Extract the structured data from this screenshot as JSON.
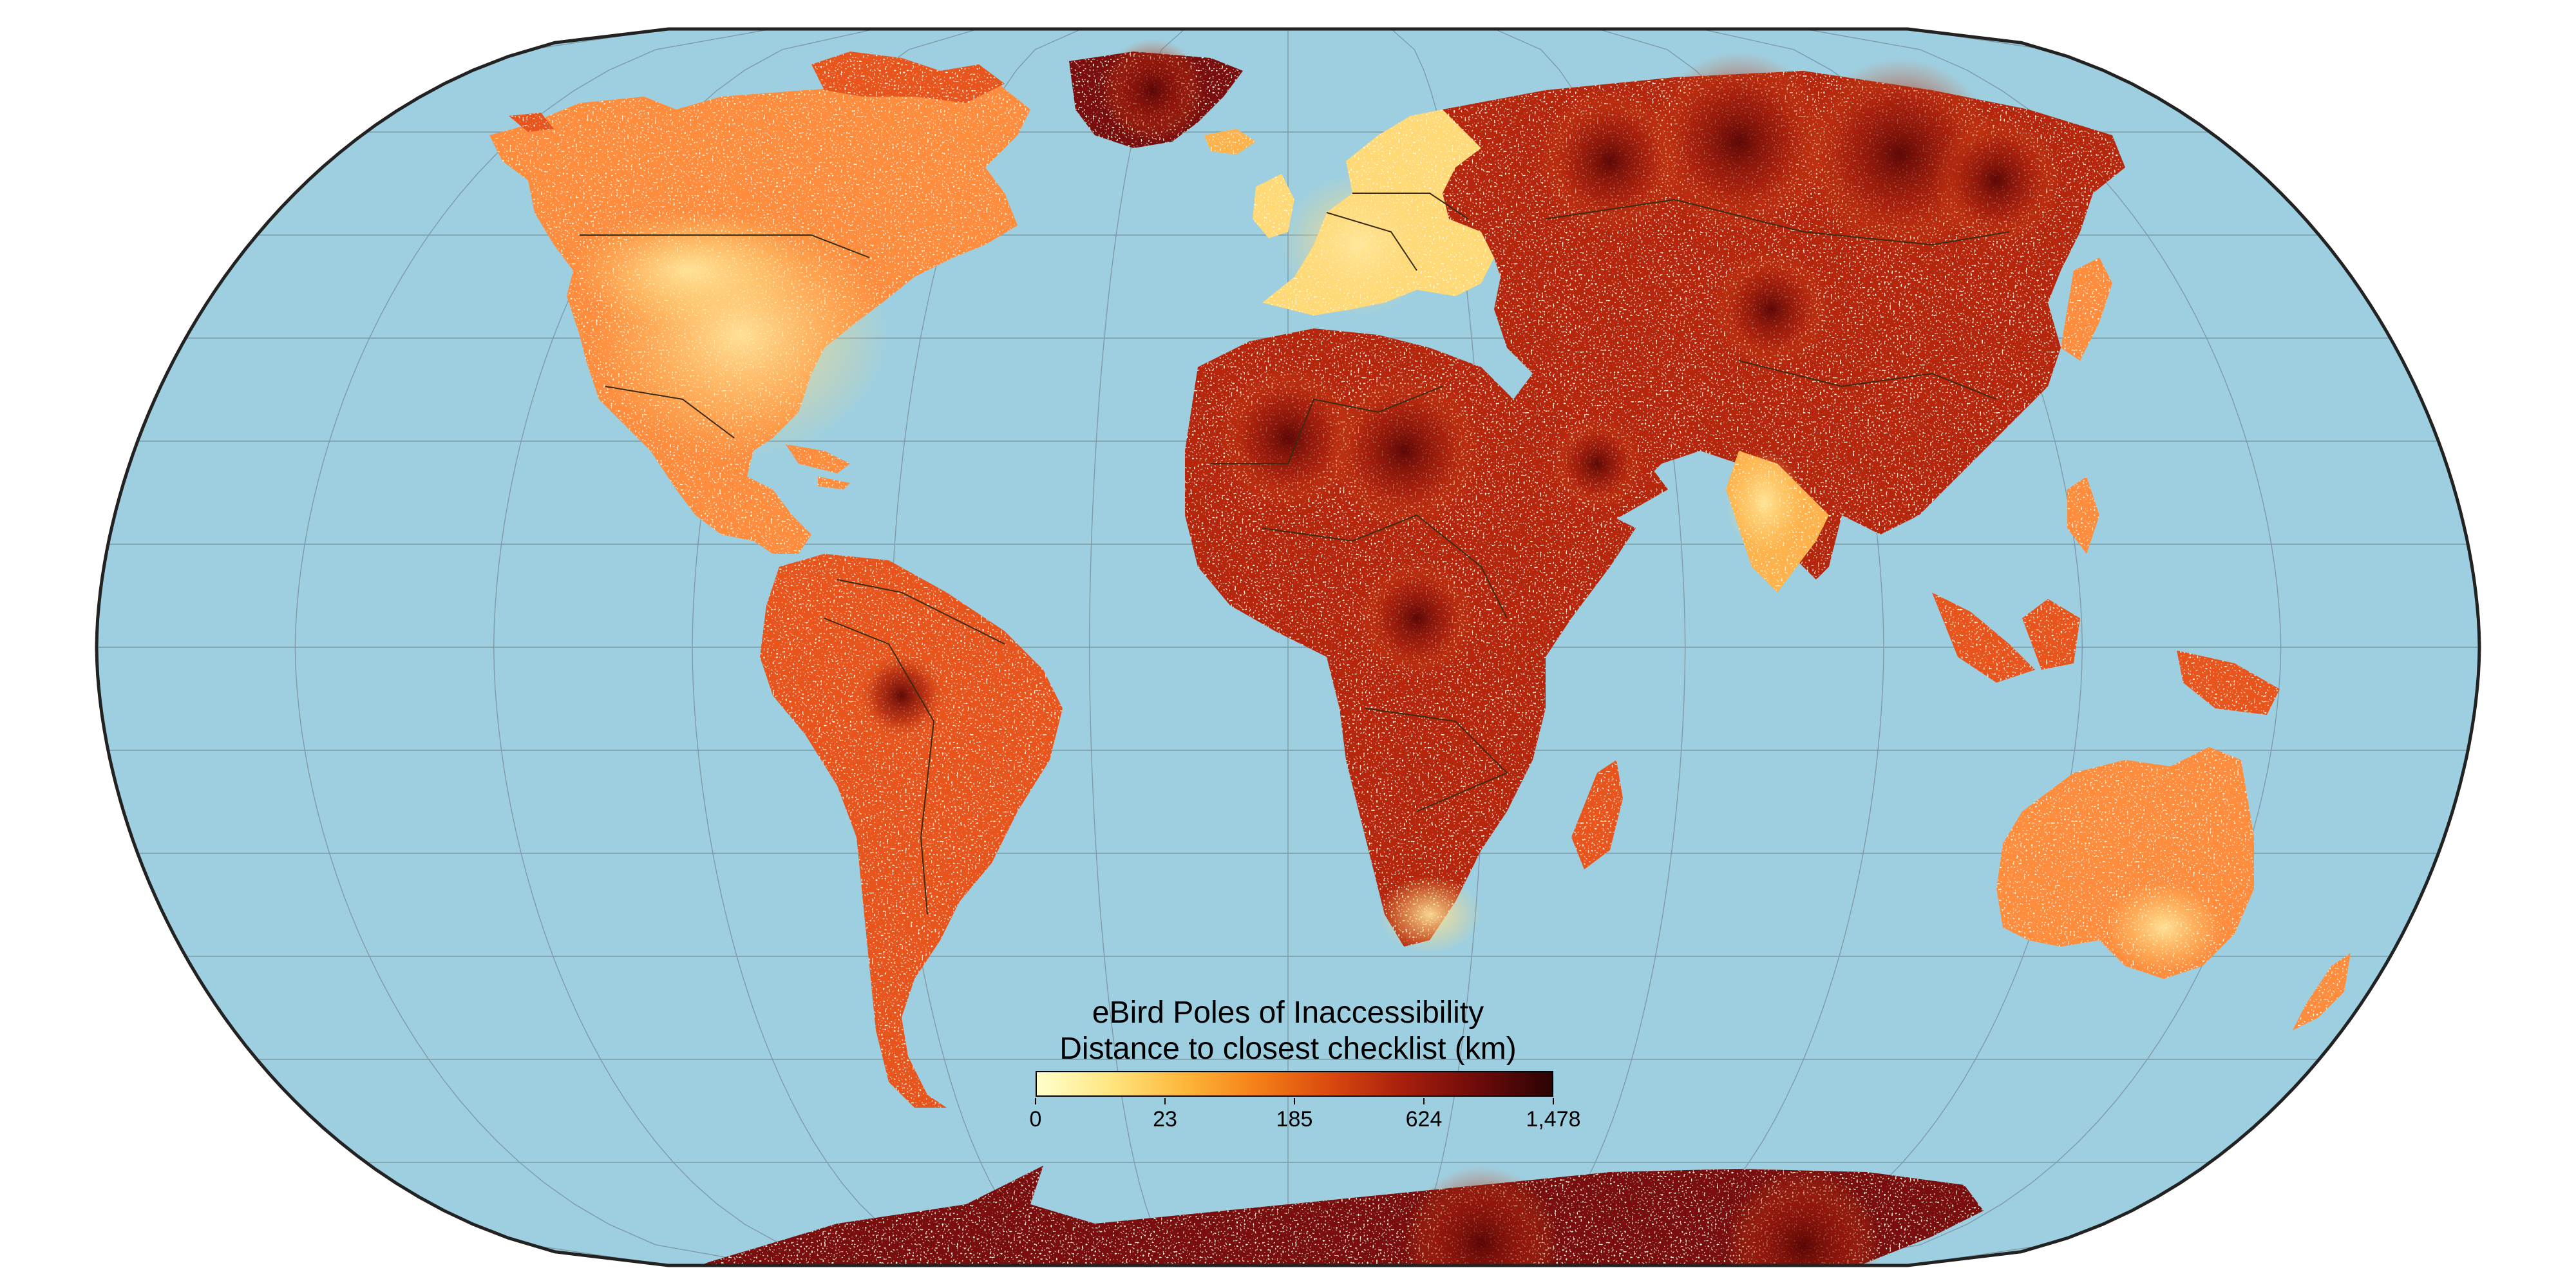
{
  "map": {
    "projection": "robinson",
    "ocean_color": "#9ecfe0",
    "outline_color": "#222222",
    "graticule_color": "#7f9aa6",
    "border_color": "#3a2a10",
    "land_colors": [
      "#ffffb2",
      "#fed976",
      "#feb24c",
      "#fd8d3c",
      "#e8541c",
      "#b5280c",
      "#7a0c0c",
      "#3d0505"
    ]
  },
  "legend": {
    "title": "eBird Poles of Inaccessibility",
    "subtitle": "Distance to closest checklist (km)",
    "position": "bottom-center",
    "gradient": [
      "#ffffcc",
      "#ffe680",
      "#fdb73a",
      "#f57f17",
      "#d9480f",
      "#a61e0c",
      "#6d0a0a",
      "#2b0303"
    ],
    "ticks": [
      {
        "label": "0",
        "value": 0
      },
      {
        "label": "23",
        "value": 23
      },
      {
        "label": "185",
        "value": 185
      },
      {
        "label": "624",
        "value": 624
      },
      {
        "label": "1,478",
        "value": 1478
      }
    ]
  }
}
